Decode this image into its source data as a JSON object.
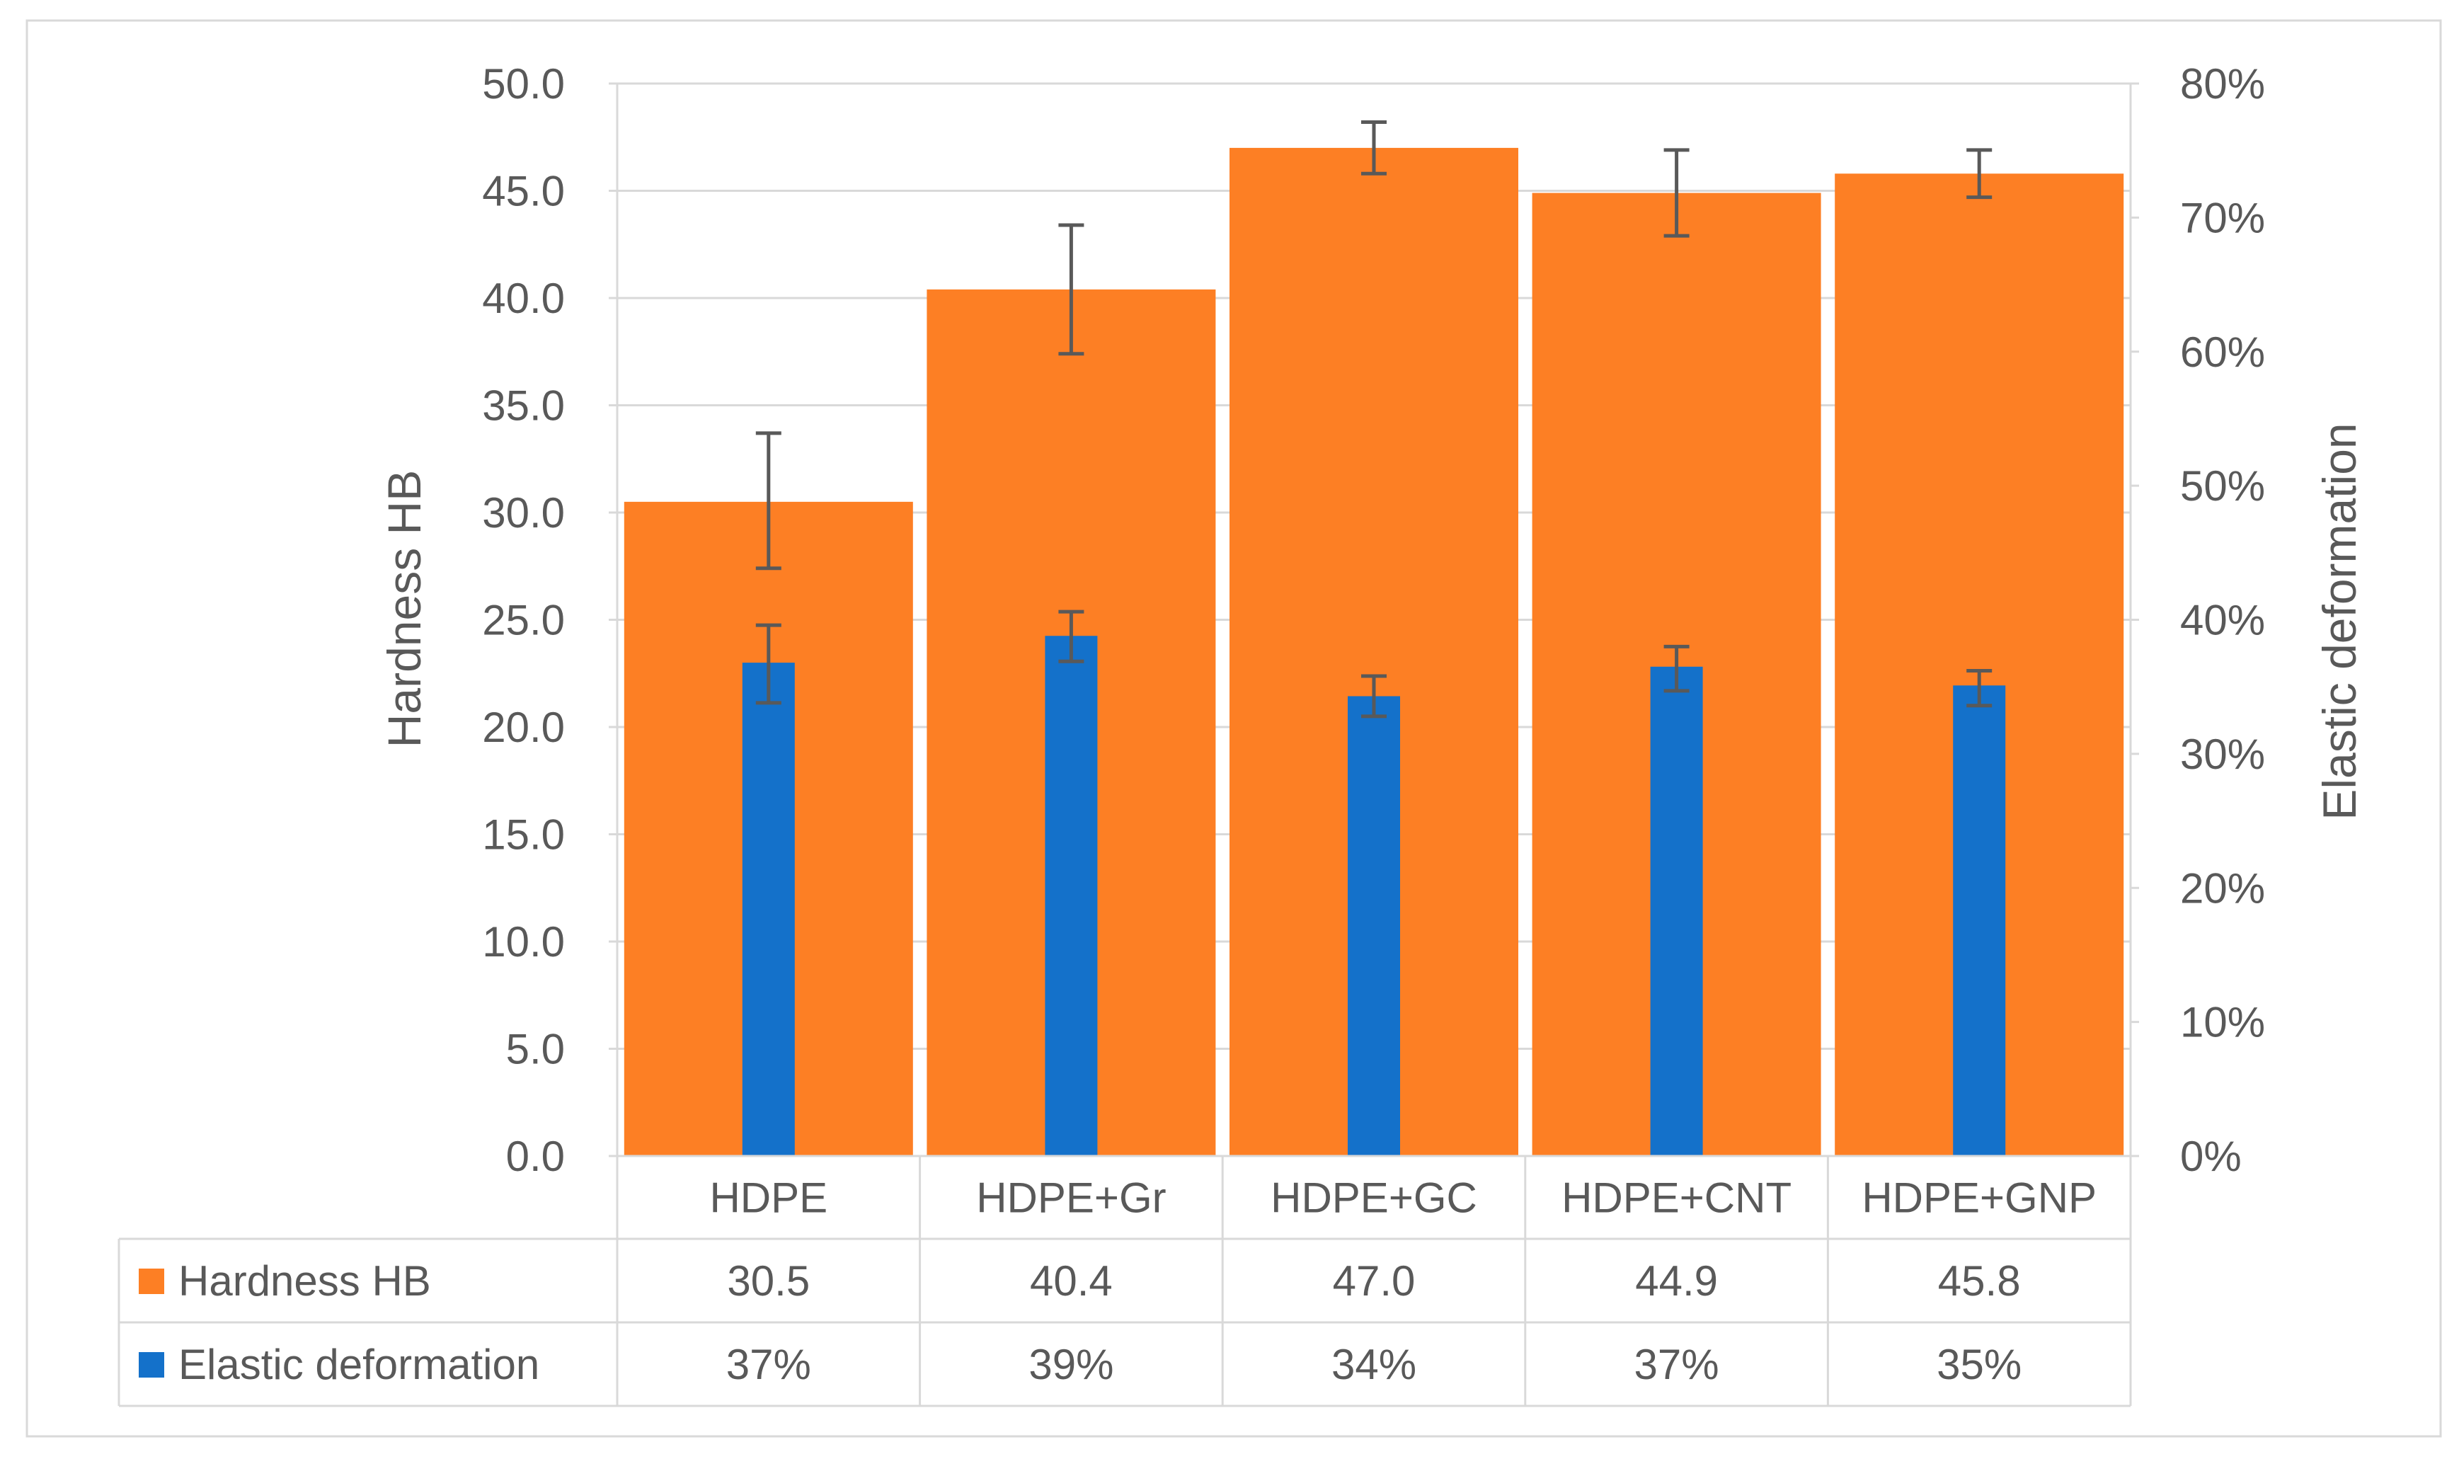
{
  "chart_data": {
    "type": "bar",
    "title": "",
    "categories": [
      "HDPE",
      "HDPE+Gr",
      "HDPE+GC",
      "HDPE+CNT",
      "HDPE+GNP"
    ],
    "series": [
      {
        "name": "Hardness HB",
        "axis": "left",
        "color": "#FD7F24",
        "values": [
          30.5,
          40.4,
          47.0,
          44.9,
          45.8
        ],
        "value_labels": [
          "30.5",
          "40.4",
          "47.0",
          "44.9",
          "45.8"
        ],
        "error_low": [
          27.4,
          37.4,
          45.8,
          42.9,
          44.7
        ],
        "error_high": [
          33.7,
          43.4,
          48.2,
          46.9,
          46.9
        ]
      },
      {
        "name": "Elastic deformation",
        "axis": "right",
        "color": "#1471CA",
        "values": [
          0.368,
          0.388,
          0.343,
          0.365,
          0.351
        ],
        "value_labels": [
          "37%",
          "39%",
          "34%",
          "37%",
          "35%"
        ],
        "error_low": [
          0.338,
          0.369,
          0.328,
          0.347,
          0.336
        ],
        "error_high": [
          0.396,
          0.406,
          0.358,
          0.38,
          0.362
        ]
      }
    ],
    "ylabel": "Hardness HB",
    "y2label": "Elastic deformation",
    "ylim": [
      0,
      50
    ],
    "y2lim": [
      0,
      0.8
    ],
    "yticks": [
      "0.0",
      "5.0",
      "10.0",
      "15.0",
      "20.0",
      "25.0",
      "30.0",
      "35.0",
      "40.0",
      "45.0",
      "50.0"
    ],
    "y2ticks": [
      "0%",
      "10%",
      "20%",
      "30%",
      "40%",
      "50%",
      "60%",
      "70%",
      "80%"
    ],
    "gridlines": true,
    "data_table": true,
    "colors": {
      "grid": "#D9D9D9",
      "text": "#595959",
      "error_bar": "#595959",
      "frame": "#D9D9D9"
    }
  }
}
